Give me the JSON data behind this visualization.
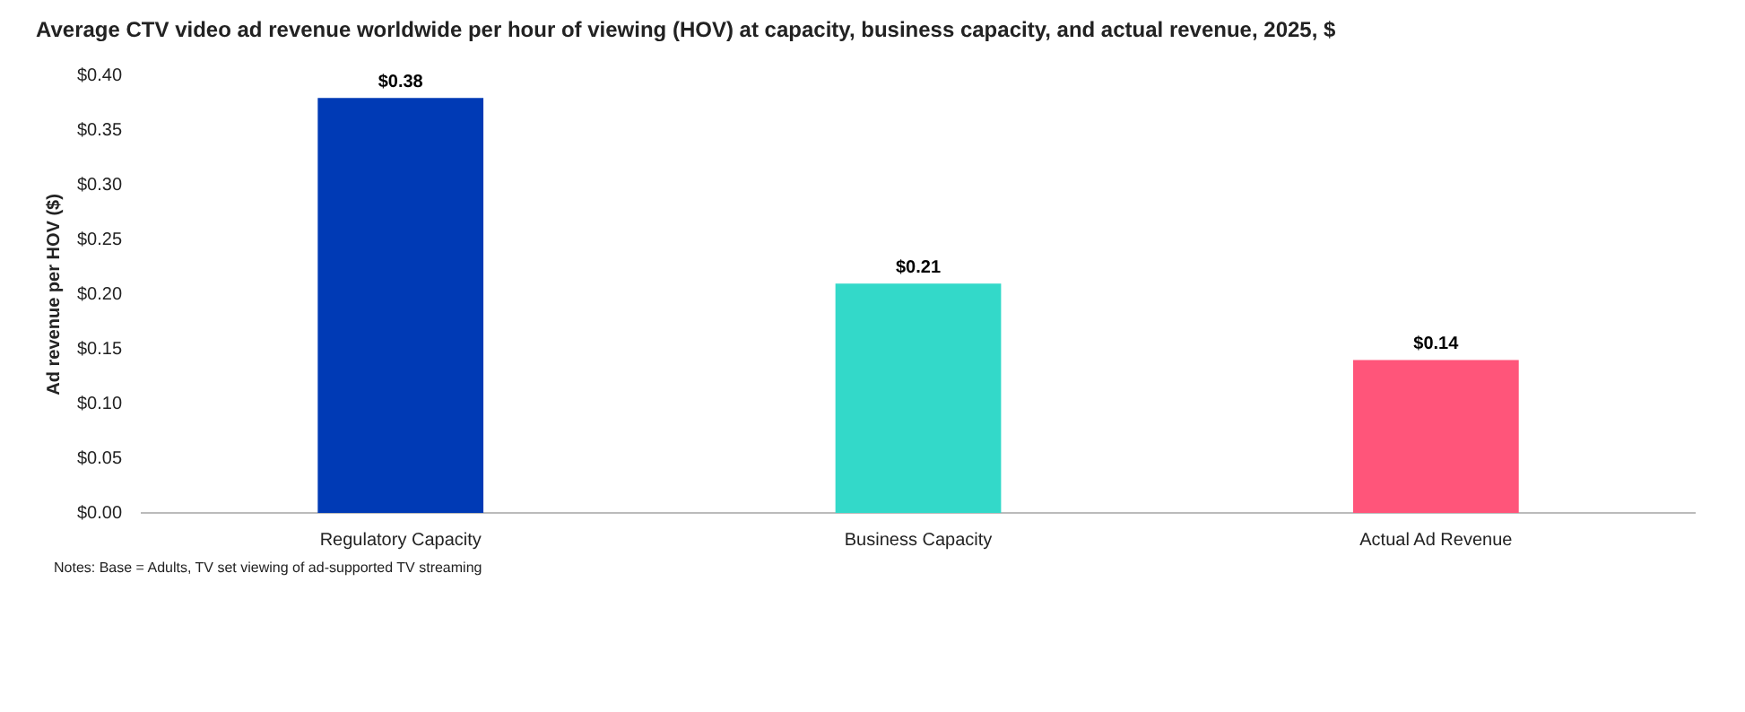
{
  "chart_data": {
    "type": "bar",
    "title": "Average CTV video ad revenue worldwide per hour of viewing (HOV) at capacity, business capacity, and actual revenue, 2025, $",
    "ylabel": "Ad revenue per HOV ($)",
    "categories": [
      "Regulatory Capacity",
      "Business Capacity",
      "Actual Ad Revenue"
    ],
    "values": [
      0.38,
      0.21,
      0.14
    ],
    "colors": [
      "#003ab5",
      "#33d9c9",
      "#ff557a"
    ],
    "value_labels": [
      "$0.38",
      "$0.21",
      "$0.14"
    ],
    "ylim": [
      0,
      0.4
    ],
    "yticks": [
      {
        "value": 0,
        "label": "$0.00"
      },
      {
        "value": 0.05,
        "label": "$0.05"
      },
      {
        "value": 0.1,
        "label": "$0.10"
      },
      {
        "value": 0.15,
        "label": "$0.15"
      },
      {
        "value": 0.2,
        "label": "$0.20"
      },
      {
        "value": 0.25,
        "label": "$0.25"
      },
      {
        "value": 0.3,
        "label": "$0.30"
      },
      {
        "value": 0.35,
        "label": "$0.35"
      },
      {
        "value": 0.4,
        "label": "$0.40"
      }
    ],
    "grid": false,
    "legend": false,
    "annotations": [
      "Notes: Base = Adults, TV set viewing of ad-supported TV streaming"
    ]
  }
}
